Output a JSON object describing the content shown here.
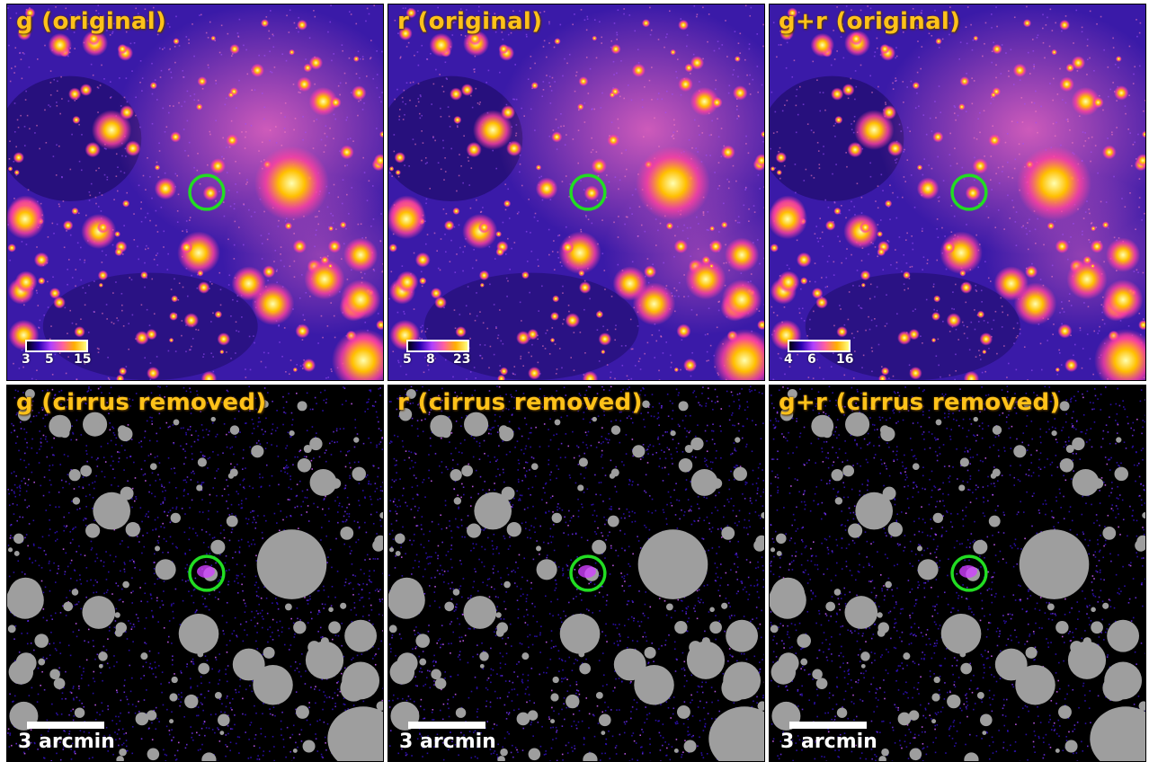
{
  "panels": [
    {
      "title": "g (original)",
      "colorbar_ticks": [
        "3",
        "5",
        "15"
      ]
    },
    {
      "title": "r (original)",
      "colorbar_ticks": [
        "5",
        "8",
        "23"
      ]
    },
    {
      "title": "g+r (original)",
      "colorbar_ticks": [
        "4",
        "6",
        "16"
      ]
    },
    {
      "title": "g (cirrus removed)",
      "scale_label": "3 arcmin"
    },
    {
      "title": "r (cirrus removed)",
      "scale_label": "3 arcmin"
    },
    {
      "title": "g+r (cirrus removed)",
      "scale_label": "3 arcmin"
    }
  ],
  "colors": {
    "title": "#ffc21a",
    "circle": "#22dd22",
    "mask": "#9e9e9e",
    "background_cleaned": "#000000",
    "background_original": "#3a1aa8"
  }
}
